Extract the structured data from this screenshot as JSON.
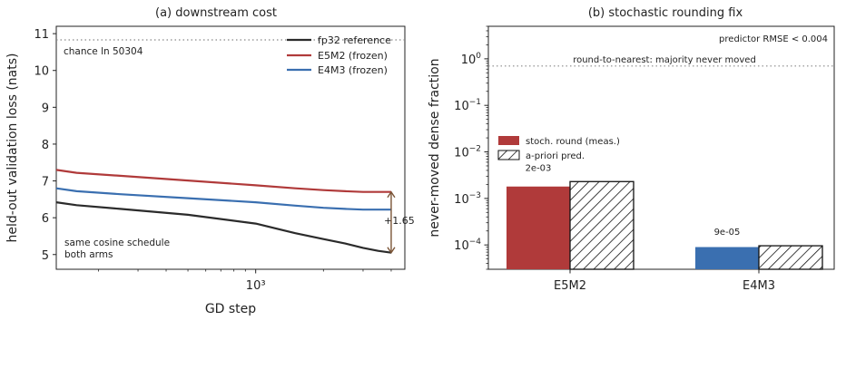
{
  "chart_data": [
    {
      "type": "line",
      "title": "(a) downstream cost",
      "xlabel": "GD step",
      "ylabel": "held-out validation loss (nats)",
      "xscale": "log",
      "xlim": [
        130,
        4600
      ],
      "ylim": [
        4.6,
        11.2
      ],
      "x_ticks": [
        {
          "value": 1000,
          "label": "10³"
        }
      ],
      "y_ticks": [
        5,
        6,
        7,
        8,
        9,
        10,
        11
      ],
      "legend_position": "top-right",
      "series": [
        {
          "name": "fp32 reference",
          "color": "#2b2b2b",
          "x": [
            130,
            160,
            250,
            500,
            1000,
            1500,
            2000,
            2500,
            3000,
            3500,
            4000
          ],
          "y": [
            6.42,
            6.34,
            6.24,
            6.08,
            5.84,
            5.58,
            5.42,
            5.3,
            5.18,
            5.1,
            5.05
          ]
        },
        {
          "name": "E5M2 (frozen)",
          "color": "#b03a3a",
          "x": [
            130,
            160,
            250,
            500,
            1000,
            1500,
            2000,
            2500,
            3000,
            3500,
            4000
          ],
          "y": [
            7.3,
            7.22,
            7.14,
            7.01,
            6.88,
            6.8,
            6.75,
            6.72,
            6.7,
            6.7,
            6.7
          ]
        },
        {
          "name": "E4M3 (frozen)",
          "color": "#3a6fb0",
          "x": [
            130,
            160,
            250,
            500,
            1000,
            1500,
            2000,
            2500,
            3000,
            3500,
            4000
          ],
          "y": [
            6.8,
            6.72,
            6.64,
            6.53,
            6.42,
            6.33,
            6.27,
            6.24,
            6.22,
            6.22,
            6.22
          ]
        }
      ],
      "reference_line": {
        "y": 10.83,
        "label": "chance ln 50304",
        "color": "#888888"
      },
      "gap_annotation": {
        "x": 4000,
        "y_from": 6.7,
        "y_to": 5.05,
        "label": "+1.65",
        "color": "#7a5436"
      },
      "note": {
        "lines": [
          "same cosine schedule",
          "both arms"
        ],
        "color": "#4a6f99"
      }
    },
    {
      "type": "bar",
      "title": "(b) stochastic rounding fix",
      "ylabel": "never-moved dense fraction",
      "yscale": "log",
      "ylim": [
        3e-05,
        5
      ],
      "y_ticks": [
        {
          "value": 0.0001,
          "base": "10",
          "exp": "−4"
        },
        {
          "value": 0.001,
          "base": "10",
          "exp": "−3"
        },
        {
          "value": 0.01,
          "base": "10",
          "exp": "−2"
        },
        {
          "value": 0.1,
          "base": "10",
          "exp": "−1"
        },
        {
          "value": 1,
          "base": "10",
          "exp": "0"
        }
      ],
      "categories": [
        "E5M2",
        "E4M3"
      ],
      "category_colors": [
        "#b03a3a",
        "#3a6fb0"
      ],
      "legend_position": "center-left",
      "series": [
        {
          "name": "stoch. round (meas.)",
          "style": "solid",
          "values": [
            0.0018,
            9e-05
          ]
        },
        {
          "name": "a-priori pred.",
          "style": "hatched",
          "values": [
            0.0023,
            9.6e-05
          ]
        }
      ],
      "bar_labels": [
        "2e-03",
        "9e-05"
      ],
      "reference_line": {
        "y": 0.7,
        "label": "round-to-nearest: majority never moved",
        "color": "#888888"
      },
      "annotation": "predictor RMSE < 0.004"
    }
  ]
}
